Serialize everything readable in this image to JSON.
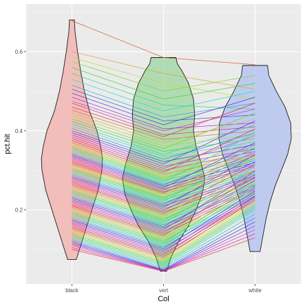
{
  "chart_data": {
    "type": "violin",
    "xlabel": "Col",
    "ylabel": "pct.hit",
    "categories": [
      "black",
      "vert",
      "white"
    ],
    "ylim": [
      0.013,
      0.72
    ],
    "yticks": [
      0.2,
      0.4,
      0.6
    ],
    "ytick_labels": [
      "0.2",
      "0.4",
      "0.6"
    ],
    "grid": true,
    "violins": [
      {
        "category": "black",
        "fill": "#f2b6b3",
        "profile": [
          [
            0.075,
            0.035
          ],
          [
            0.1,
            0.06
          ],
          [
            0.15,
            0.11
          ],
          [
            0.2,
            0.16
          ],
          [
            0.25,
            0.21
          ],
          [
            0.3,
            0.24
          ],
          [
            0.33,
            0.245
          ],
          [
            0.36,
            0.23
          ],
          [
            0.4,
            0.2
          ],
          [
            0.45,
            0.14
          ],
          [
            0.5,
            0.1
          ],
          [
            0.55,
            0.07
          ],
          [
            0.6,
            0.045
          ],
          [
            0.65,
            0.025
          ],
          [
            0.68,
            0.02
          ]
        ]
      },
      {
        "category": "vert",
        "fill": "#a6d8a8",
        "profile": [
          [
            0.045,
            0.025
          ],
          [
            0.08,
            0.06
          ],
          [
            0.12,
            0.12
          ],
          [
            0.16,
            0.2
          ],
          [
            0.2,
            0.26
          ],
          [
            0.24,
            0.31
          ],
          [
            0.28,
            0.33
          ],
          [
            0.32,
            0.3
          ],
          [
            0.36,
            0.26
          ],
          [
            0.4,
            0.24
          ],
          [
            0.44,
            0.25
          ],
          [
            0.48,
            0.24
          ],
          [
            0.52,
            0.2
          ],
          [
            0.55,
            0.15
          ],
          [
            0.57,
            0.11
          ],
          [
            0.585,
            0.1
          ]
        ]
      },
      {
        "category": "white",
        "fill": "#b6c6f0",
        "profile": [
          [
            0.095,
            0.04
          ],
          [
            0.13,
            0.06
          ],
          [
            0.18,
            0.09
          ],
          [
            0.22,
            0.12
          ],
          [
            0.26,
            0.16
          ],
          [
            0.3,
            0.21
          ],
          [
            0.34,
            0.26
          ],
          [
            0.38,
            0.29
          ],
          [
            0.42,
            0.285
          ],
          [
            0.46,
            0.24
          ],
          [
            0.5,
            0.17
          ],
          [
            0.54,
            0.11
          ],
          [
            0.565,
            0.1
          ]
        ]
      }
    ],
    "paired_lines": {
      "count": 96,
      "values": [
        [
          0.678,
          0.585,
          0.567
        ],
        [
          0.6,
          0.545,
          0.505
        ],
        [
          0.585,
          0.52,
          0.48
        ],
        [
          0.575,
          0.5,
          0.54
        ],
        [
          0.56,
          0.48,
          0.52
        ],
        [
          0.545,
          0.465,
          0.455
        ],
        [
          0.53,
          0.45,
          0.5
        ],
        [
          0.515,
          0.435,
          0.47
        ],
        [
          0.505,
          0.425,
          0.44
        ],
        [
          0.495,
          0.415,
          0.485
        ],
        [
          0.485,
          0.405,
          0.42
        ],
        [
          0.475,
          0.4,
          0.455
        ],
        [
          0.47,
          0.39,
          0.41
        ],
        [
          0.46,
          0.385,
          0.47
        ],
        [
          0.452,
          0.378,
          0.4
        ],
        [
          0.445,
          0.37,
          0.43
        ],
        [
          0.438,
          0.362,
          0.39
        ],
        [
          0.43,
          0.355,
          0.445
        ],
        [
          0.424,
          0.348,
          0.38
        ],
        [
          0.418,
          0.34,
          0.415
        ],
        [
          0.412,
          0.335,
          0.372
        ],
        [
          0.406,
          0.328,
          0.395
        ],
        [
          0.4,
          0.322,
          0.365
        ],
        [
          0.395,
          0.316,
          0.425
        ],
        [
          0.39,
          0.31,
          0.355
        ],
        [
          0.385,
          0.305,
          0.388
        ],
        [
          0.38,
          0.3,
          0.348
        ],
        [
          0.375,
          0.295,
          0.405
        ],
        [
          0.37,
          0.29,
          0.34
        ],
        [
          0.366,
          0.285,
          0.378
        ],
        [
          0.362,
          0.282,
          0.335
        ],
        [
          0.358,
          0.278,
          0.362
        ],
        [
          0.354,
          0.274,
          0.33
        ],
        [
          0.35,
          0.27,
          0.395
        ],
        [
          0.346,
          0.266,
          0.325
        ],
        [
          0.342,
          0.263,
          0.355
        ],
        [
          0.338,
          0.26,
          0.32
        ],
        [
          0.334,
          0.256,
          0.37
        ],
        [
          0.33,
          0.253,
          0.315
        ],
        [
          0.326,
          0.25,
          0.345
        ],
        [
          0.322,
          0.246,
          0.31
        ],
        [
          0.318,
          0.243,
          0.338
        ],
        [
          0.314,
          0.24,
          0.305
        ],
        [
          0.31,
          0.236,
          0.36
        ],
        [
          0.306,
          0.233,
          0.3
        ],
        [
          0.302,
          0.23,
          0.33
        ],
        [
          0.298,
          0.226,
          0.296
        ],
        [
          0.294,
          0.222,
          0.35
        ],
        [
          0.29,
          0.218,
          0.292
        ],
        [
          0.286,
          0.214,
          0.322
        ],
        [
          0.282,
          0.21,
          0.288
        ],
        [
          0.278,
          0.206,
          0.34
        ],
        [
          0.274,
          0.202,
          0.284
        ],
        [
          0.27,
          0.198,
          0.315
        ],
        [
          0.266,
          0.194,
          0.28
        ],
        [
          0.262,
          0.19,
          0.3
        ],
        [
          0.258,
          0.186,
          0.276
        ],
        [
          0.254,
          0.182,
          0.332
        ],
        [
          0.25,
          0.178,
          0.272
        ],
        [
          0.246,
          0.174,
          0.29
        ],
        [
          0.242,
          0.17,
          0.268
        ],
        [
          0.238,
          0.166,
          0.31
        ],
        [
          0.234,
          0.162,
          0.264
        ],
        [
          0.23,
          0.158,
          0.282
        ],
        [
          0.226,
          0.154,
          0.26
        ],
        [
          0.222,
          0.15,
          0.298
        ],
        [
          0.218,
          0.146,
          0.256
        ],
        [
          0.214,
          0.142,
          0.275
        ],
        [
          0.21,
          0.138,
          0.252
        ],
        [
          0.206,
          0.134,
          0.29
        ],
        [
          0.202,
          0.13,
          0.248
        ],
        [
          0.198,
          0.126,
          0.268
        ],
        [
          0.194,
          0.122,
          0.244
        ],
        [
          0.19,
          0.118,
          0.262
        ],
        [
          0.186,
          0.114,
          0.24
        ],
        [
          0.182,
          0.11,
          0.255
        ],
        [
          0.178,
          0.106,
          0.236
        ],
        [
          0.174,
          0.102,
          0.248
        ],
        [
          0.17,
          0.098,
          0.232
        ],
        [
          0.166,
          0.094,
          0.242
        ],
        [
          0.162,
          0.09,
          0.228
        ],
        [
          0.158,
          0.086,
          0.235
        ],
        [
          0.154,
          0.082,
          0.224
        ],
        [
          0.15,
          0.078,
          0.228
        ],
        [
          0.146,
          0.074,
          0.22
        ],
        [
          0.142,
          0.07,
          0.215
        ],
        [
          0.138,
          0.066,
          0.21
        ],
        [
          0.134,
          0.062,
          0.205
        ],
        [
          0.13,
          0.058,
          0.2
        ],
        [
          0.126,
          0.054,
          0.19
        ],
        [
          0.122,
          0.05,
          0.18
        ],
        [
          0.118,
          0.048,
          0.17
        ],
        [
          0.114,
          0.047,
          0.16
        ],
        [
          0.11,
          0.046,
          0.15
        ],
        [
          0.105,
          0.046,
          0.14
        ],
        [
          0.1,
          0.045,
          0.13
        ]
      ]
    }
  },
  "colors": {
    "panel_bg": "#ebebeb",
    "grid_major": "#ffffff",
    "grid_minor": "#f5f5f5",
    "outline": "#1a1a1a",
    "tick_text": "#4d4d4d"
  }
}
